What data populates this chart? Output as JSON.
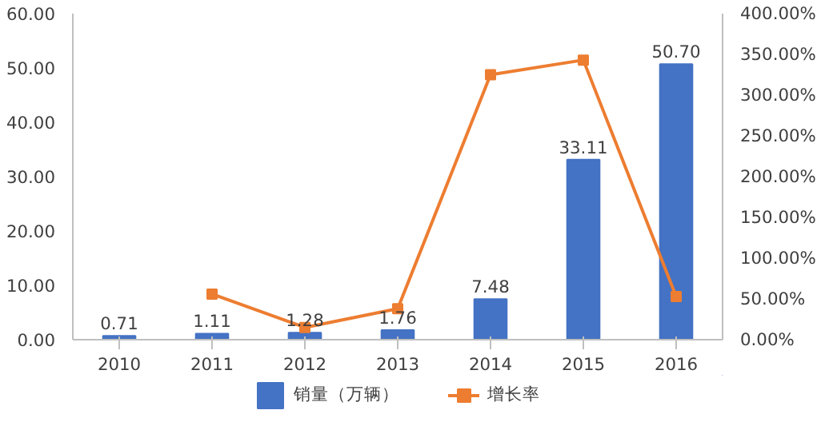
{
  "chart_data": {
    "type": "bar",
    "categories": [
      "2010",
      "2011",
      "2012",
      "2013",
      "2014",
      "2015",
      "2016"
    ],
    "series": [
      {
        "name": "销量（万辆）",
        "color": "#4472c4",
        "values": [
          0.71,
          1.11,
          1.28,
          1.76,
          7.48,
          33.11,
          50.7
        ]
      },
      {
        "name": "增长率",
        "type": "line",
        "axis": "y2",
        "color": "#ed7d31",
        "marker": "square",
        "values": [
          null,
          56,
          15,
          38,
          325,
          343,
          53
        ]
      }
    ],
    "value_labels": [
      "0.71",
      "1.11",
      "1.28",
      "1.76",
      "7.48",
      "33.11",
      "50.70"
    ],
    "ylim": [
      0,
      60
    ],
    "yticks": [
      {
        "value": 0,
        "label": "0.00"
      },
      {
        "value": 10,
        "label": "10.00"
      },
      {
        "value": 20,
        "label": "20.00"
      },
      {
        "value": 30,
        "label": "30.00"
      },
      {
        "value": 40,
        "label": "40.00"
      },
      {
        "value": 50,
        "label": "50.00"
      },
      {
        "value": 60,
        "label": "60.00"
      }
    ],
    "y2lim": [
      0,
      400
    ],
    "y2ticks": [
      {
        "value": 0,
        "label": "0.00%"
      },
      {
        "value": 50,
        "label": "50.00%"
      },
      {
        "value": 100,
        "label": "100.00%"
      },
      {
        "value": 150,
        "label": "150.00%"
      },
      {
        "value": 200,
        "label": "200.00%"
      },
      {
        "value": 250,
        "label": "250.00%"
      },
      {
        "value": 300,
        "label": "300.00%"
      },
      {
        "value": 350,
        "label": "350.00%"
      },
      {
        "value": 400,
        "label": "400.00%"
      }
    ],
    "grid": false,
    "legend": "bottom"
  }
}
